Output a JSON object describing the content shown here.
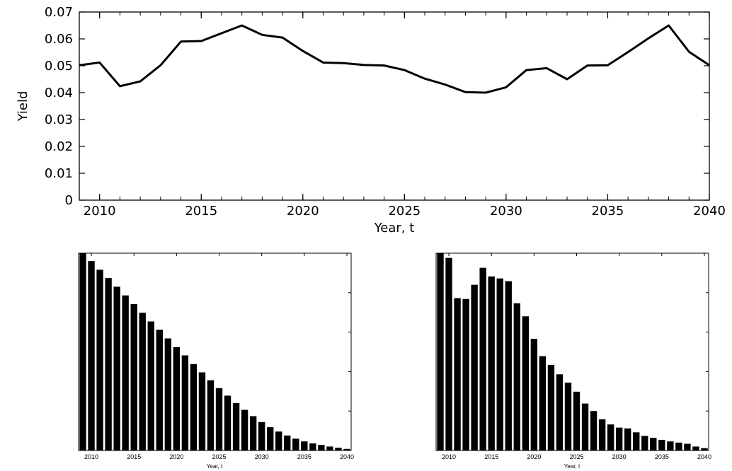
{
  "chart_data": [
    {
      "type": "line",
      "xlabel": "Year, t",
      "ylabel": "Yield",
      "xlim": [
        2009,
        2040
      ],
      "ylim": [
        0,
        0.07
      ],
      "xticks": [
        "2010",
        "2015",
        "2020",
        "2025",
        "2030",
        "2035",
        "2040"
      ],
      "yticks": [
        "0",
        "0.01",
        "0.02",
        "0.03",
        "0.04",
        "0.05",
        "0.06",
        "0.07"
      ],
      "series": [
        {
          "x": [
            2009,
            2010,
            2011,
            2012,
            2013,
            2014,
            2015,
            2016,
            2017,
            2018,
            2019,
            2020,
            2021,
            2022,
            2023,
            2024,
            2025,
            2026,
            2027,
            2028,
            2029,
            2030,
            2031,
            2032,
            2033,
            2034,
            2035,
            2036,
            2037,
            2038,
            2039,
            2040
          ],
          "y": [
            0.0502,
            0.0512,
            0.0424,
            0.0442,
            0.0502,
            0.059,
            0.0592,
            0.0621,
            0.065,
            0.0615,
            0.0605,
            0.0555,
            0.0512,
            0.051,
            0.0503,
            0.0501,
            0.0484,
            0.0452,
            0.043,
            0.0402,
            0.04,
            0.042,
            0.0484,
            0.0491,
            0.045,
            0.0501,
            0.0502,
            0.0551,
            0.0602,
            0.065,
            0.0552,
            0.0502
          ],
          "color": "#000000"
        }
      ],
      "grid": false
    },
    {
      "type": "bar",
      "xlabel": "Year, t",
      "xticks": [
        "2010",
        "2015",
        "2020",
        "2025",
        "2030",
        "2035",
        "2040"
      ],
      "categories": [
        2009,
        2010,
        2011,
        2012,
        2013,
        2014,
        2015,
        2016,
        2017,
        2018,
        2019,
        2020,
        2021,
        2022,
        2023,
        2024,
        2025,
        2026,
        2027,
        2028,
        2029,
        2030,
        2031,
        2032,
        2033,
        2034,
        2035,
        2036,
        2037,
        2038,
        2039,
        2040
      ],
      "values": [
        1.0,
        0.96,
        0.916,
        0.874,
        0.83,
        0.786,
        0.742,
        0.698,
        0.654,
        0.612,
        0.568,
        0.524,
        0.482,
        0.438,
        0.396,
        0.356,
        0.316,
        0.278,
        0.24,
        0.206,
        0.174,
        0.144,
        0.118,
        0.096,
        0.076,
        0.06,
        0.046,
        0.036,
        0.028,
        0.02,
        0.014,
        0.008
      ],
      "ylim": [
        0,
        1
      ],
      "color": "#000000"
    },
    {
      "type": "bar",
      "xlabel": "Year, t",
      "xticks": [
        "2010",
        "2015",
        "2020",
        "2025",
        "2030",
        "2035",
        "2040"
      ],
      "categories": [
        2009,
        2010,
        2011,
        2012,
        2013,
        2014,
        2015,
        2016,
        2017,
        2018,
        2019,
        2020,
        2021,
        2022,
        2023,
        2024,
        2025,
        2026,
        2027,
        2028,
        2029,
        2030,
        2031,
        2032,
        2033,
        2034,
        2035,
        2036,
        2037,
        2038,
        2039,
        2040
      ],
      "values": [
        1.0,
        0.976,
        0.772,
        0.768,
        0.84,
        0.926,
        0.882,
        0.872,
        0.858,
        0.746,
        0.68,
        0.566,
        0.478,
        0.434,
        0.386,
        0.344,
        0.298,
        0.238,
        0.2,
        0.158,
        0.132,
        0.116,
        0.112,
        0.092,
        0.074,
        0.064,
        0.054,
        0.046,
        0.04,
        0.034,
        0.02,
        0.012
      ],
      "ylim": [
        0,
        1
      ],
      "color": "#000000"
    }
  ]
}
